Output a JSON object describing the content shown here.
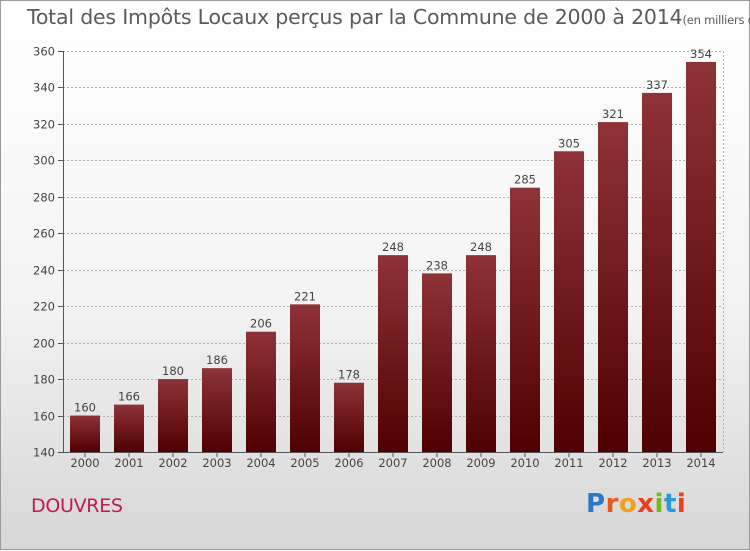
{
  "title": "Total des Impôts Locaux perçus par la Commune de 2000 à 2014",
  "title_unit": "(en milliers d'€)",
  "commune": "DOUVRES",
  "logo": {
    "text": "Proxiti",
    "letters": [
      {
        "ch": "P",
        "color": "#2a78c8"
      },
      {
        "ch": "r",
        "color": "#e85a1c"
      },
      {
        "ch": "o",
        "color": "#f0a01c"
      },
      {
        "ch": "x",
        "color": "#e8401c"
      },
      {
        "ch": "i",
        "color": "#7ab51d"
      },
      {
        "ch": "t",
        "color": "#2a9bd8"
      },
      {
        "ch": "i",
        "color": "#e8401c"
      }
    ]
  },
  "colors": {
    "bar_top": "#8e3338",
    "bar_bottom": "#4f0000",
    "grid": "#b0b0b0",
    "axis": "#555555",
    "text": "#444444"
  },
  "chart_data": {
    "type": "bar",
    "title": "Total des Impôts Locaux perçus par la Commune de 2000 à 2014",
    "xlabel": "",
    "ylabel": "",
    "categories": [
      "2000",
      "2001",
      "2002",
      "2003",
      "2004",
      "2005",
      "2006",
      "2007",
      "2008",
      "2009",
      "2010",
      "2011",
      "2012",
      "2013",
      "2014"
    ],
    "values": [
      160,
      166,
      180,
      186,
      206,
      221,
      178,
      248,
      238,
      248,
      285,
      305,
      321,
      337,
      354
    ],
    "ylim": [
      140,
      360
    ],
    "yticks": [
      140,
      160,
      180,
      200,
      220,
      240,
      260,
      280,
      300,
      320,
      340,
      360
    ],
    "grid": true
  }
}
